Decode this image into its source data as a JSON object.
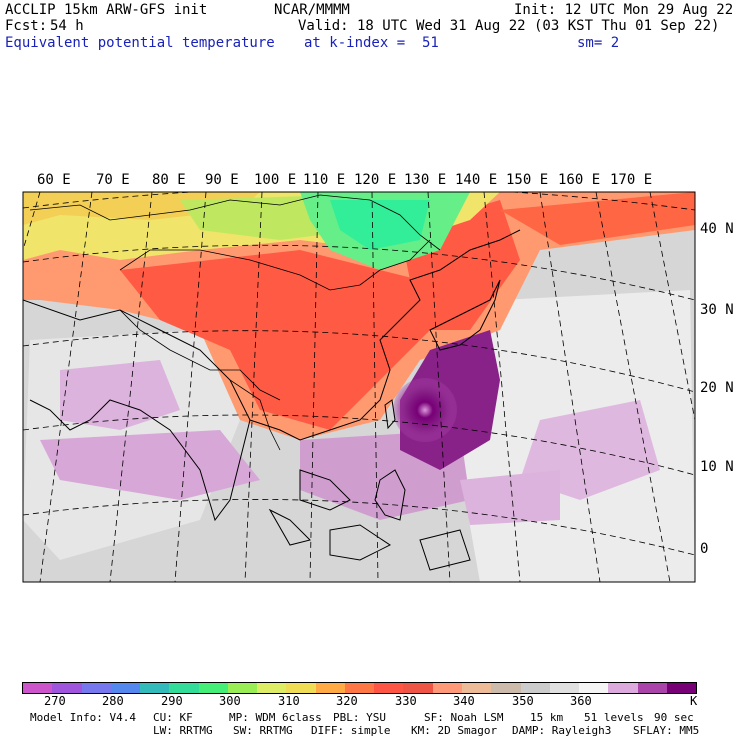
{
  "header": {
    "model": "ACCLIP 15km ARW-GFS init",
    "center": "NCAR/MMMM",
    "init": "Init: 12 UTC Mon 29 Aug 22",
    "fcst_label": "Fcst:",
    "fcst_value": "54 h",
    "valid": "Valid: 18 UTC Wed 31 Aug 22 (03 KST Thu 01 Sep 22)",
    "field": "Equivalent potential temperature",
    "level": "at k-index =  51",
    "smooth": "sm= 2"
  },
  "map": {
    "lon_labels": [
      "60 E",
      "70 E",
      "80 E",
      "90 E",
      "100 E",
      "110 E",
      "120 E",
      "130 E",
      "140 E",
      "150 E",
      "160 E",
      "170 E"
    ],
    "lat_labels": [
      "40 N",
      "30 N",
      "20 N",
      "10 N",
      "0"
    ]
  },
  "colorbar": {
    "colors": [
      "#cc55cc",
      "#a055dd",
      "#7777ee",
      "#5588ee",
      "#33bbbb",
      "#33dd99",
      "#44ee77",
      "#99ee55",
      "#ddee66",
      "#eedd55",
      "#ffaa44",
      "#ff7744",
      "#ff5544",
      "#ee5544",
      "#ff9977",
      "#eebb99",
      "#ccbbaa",
      "#cccccc",
      "#e0e0e0",
      "#f5f5f5",
      "#ddaadd",
      "#aa44aa",
      "#770077"
    ],
    "labels": [
      "270",
      "280",
      "290",
      "300",
      "310",
      "320",
      "330",
      "340",
      "350",
      "360"
    ],
    "unit": "K"
  },
  "footer": {
    "line1": [
      "Model Info: V4.4",
      "CU: KF",
      "MP: WDM 6class",
      "PBL: YSU",
      "SF: Noah LSM",
      "15 km",
      "51 levels",
      "90 sec"
    ],
    "line2": [
      "LW: RRTMG",
      "SW: RRTMG",
      "DIFF: simple",
      "KM: 2D Smagor",
      "DAMP: Rayleigh3",
      "SFLAY: MM5"
    ]
  }
}
